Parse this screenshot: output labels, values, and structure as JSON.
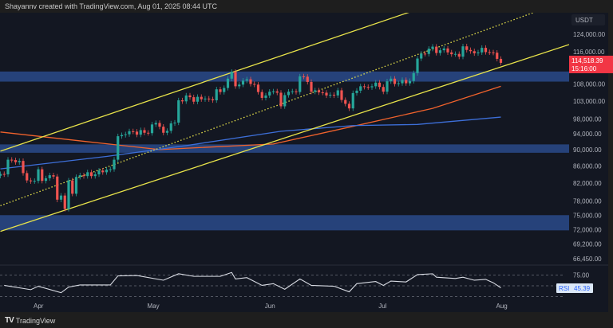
{
  "header": {
    "caption": "Shayannv created with TradingView.com, Aug 01, 2025 08:44 UTC"
  },
  "footer": {
    "brand": "TradingView",
    "logo_mark": "TV"
  },
  "colors": {
    "background": "#131722",
    "up": "#26a69a",
    "down": "#ef5350",
    "channel": "#e8e34a",
    "zone": "#2a4a8a",
    "ma_orange": "#f0622c",
    "ma_blue": "#3d6fd9",
    "rsi_line": "#d8dbe3",
    "price_label": "#f23645"
  },
  "chart_data": [
    {
      "type": "candlestick",
      "title": "",
      "y_scale": "log",
      "currency": "USDT",
      "start_date": "2025-03-22",
      "closes": [
        84100,
        84000,
        87500,
        87400,
        86900,
        87200,
        84300,
        82600,
        82400,
        82500,
        85200,
        82500,
        83100,
        83800,
        83500,
        78300,
        79200,
        76300,
        82600,
        79600,
        83400,
        83800,
        83600,
        84500,
        83600,
        84000,
        84900,
        84500,
        85100,
        85200,
        87500,
        93400,
        93700,
        93900,
        94700,
        94600,
        93800,
        95000,
        94300,
        94200,
        96500,
        96900,
        95900,
        94300,
        94800,
        96800,
        97000,
        103200,
        102900,
        104600,
        104100,
        102800,
        104200,
        103500,
        103700,
        103500,
        103200,
        106400,
        105600,
        106800,
        109600,
        111700,
        107300,
        107800,
        109000,
        109400,
        108000,
        107800,
        105600,
        103900,
        104600,
        105700,
        105800,
        105400,
        101500,
        104700,
        105700,
        105800,
        105600,
        110300,
        110200,
        108600,
        105700,
        106100,
        105500,
        105400,
        104600,
        104800,
        104600,
        106100,
        103300,
        102200,
        100900,
        105300,
        106000,
        107300,
        107100,
        107000,
        107300,
        108400,
        107100,
        105700,
        108800,
        109600,
        108000,
        108200,
        109200,
        108200,
        108900,
        111300,
        115900,
        117500,
        117400,
        119100,
        119800,
        117700,
        118600,
        119200,
        117900,
        117300,
        117400,
        116500,
        119900,
        118700,
        118300,
        117600,
        117900,
        119400,
        118000,
        117900,
        117800,
        115800,
        114518
      ],
      "y_ticks": [
        "124,000.00",
        "116,000.00",
        "108,000.00",
        "103,000.00",
        "98,000.00",
        "94,000.00",
        "90,000.00",
        "86,000.00",
        "82,000.00",
        "78,000.00",
        "75,000.00",
        "72,000.00",
        "69,200.00",
        "66,450.00"
      ],
      "y_tick_values": [
        124000,
        116000,
        108000,
        103000,
        98000,
        94000,
        90000,
        86000,
        82000,
        78000,
        75000,
        72000,
        69200,
        66450
      ],
      "x_ticks": [
        {
          "label": "Apr",
          "date": "2025-04-01"
        },
        {
          "label": "May",
          "date": "2025-05-01"
        },
        {
          "label": "Jun",
          "date": "2025-06-01"
        },
        {
          "label": "Jul",
          "date": "2025-07-01"
        },
        {
          "label": "Aug",
          "date": "2025-08-01"
        }
      ],
      "last_price": {
        "value": "114,518.39",
        "countdown": "15:16:00"
      },
      "moving_averages": [
        {
          "color": "orange",
          "points": [
            [
              "2025-03-22",
              94500
            ],
            [
              "2025-04-12",
              92200
            ],
            [
              "2025-05-03",
              90000
            ],
            [
              "2025-06-02",
              91400
            ],
            [
              "2025-06-23",
              96000
            ],
            [
              "2025-07-14",
              100900
            ],
            [
              "2025-08-01",
              107300
            ]
          ]
        },
        {
          "color": "blue",
          "points": [
            [
              "2025-03-22",
              85300
            ],
            [
              "2025-04-19",
              88300
            ],
            [
              "2025-05-10",
              91000
            ],
            [
              "2025-06-04",
              94700
            ],
            [
              "2025-06-23",
              96200
            ],
            [
              "2025-07-10",
              96500
            ],
            [
              "2025-08-01",
              98500
            ]
          ]
        }
      ],
      "channel_lines": [
        {
          "style": "solid",
          "from": [
            "2025-03-22",
            89600
          ],
          "to": [
            "2025-07-08",
            131900
          ]
        },
        {
          "style": "dotted",
          "from": [
            "2025-03-22",
            77000
          ],
          "to": [
            "2025-08-10",
            131900
          ]
        },
        {
          "style": "solid",
          "from": [
            "2025-03-22",
            71700
          ],
          "to": [
            "2025-08-19",
            120500
          ]
        }
      ],
      "zones": [
        [
          108700,
          111800
        ],
        [
          89200,
          91300
        ],
        [
          71900,
          75000
        ]
      ]
    },
    {
      "type": "line",
      "series_label": "RSI",
      "current_value": "45.39",
      "y_ticks": [
        "75.00"
      ],
      "levels": [
        75,
        50,
        25
      ],
      "points": [
        [
          "2025-03-23",
          51
        ],
        [
          "2025-03-30",
          41
        ],
        [
          "2025-04-01",
          49
        ],
        [
          "2025-04-07",
          34
        ],
        [
          "2025-04-09",
          47
        ],
        [
          "2025-04-12",
          52
        ],
        [
          "2025-04-20",
          52
        ],
        [
          "2025-04-22",
          73
        ],
        [
          "2025-04-27",
          74
        ],
        [
          "2025-05-04",
          63
        ],
        [
          "2025-05-08",
          78
        ],
        [
          "2025-05-12",
          72
        ],
        [
          "2025-05-19",
          72
        ],
        [
          "2025-05-22",
          81
        ],
        [
          "2025-05-23",
          66
        ],
        [
          "2025-05-26",
          69
        ],
        [
          "2025-05-30",
          51
        ],
        [
          "2025-06-02",
          55
        ],
        [
          "2025-06-05",
          42
        ],
        [
          "2025-06-09",
          66
        ],
        [
          "2025-06-12",
          51
        ],
        [
          "2025-06-18",
          49
        ],
        [
          "2025-06-22",
          36
        ],
        [
          "2025-06-24",
          55
        ],
        [
          "2025-06-29",
          60
        ],
        [
          "2025-07-01",
          51
        ],
        [
          "2025-07-03",
          61
        ],
        [
          "2025-07-07",
          59
        ],
        [
          "2025-07-10",
          76
        ],
        [
          "2025-07-14",
          78
        ],
        [
          "2025-07-15",
          70
        ],
        [
          "2025-07-20",
          67
        ],
        [
          "2025-07-22",
          70
        ],
        [
          "2025-07-25",
          63
        ],
        [
          "2025-07-28",
          65
        ],
        [
          "2025-07-30",
          57
        ],
        [
          "2025-08-01",
          45.39
        ]
      ]
    }
  ]
}
